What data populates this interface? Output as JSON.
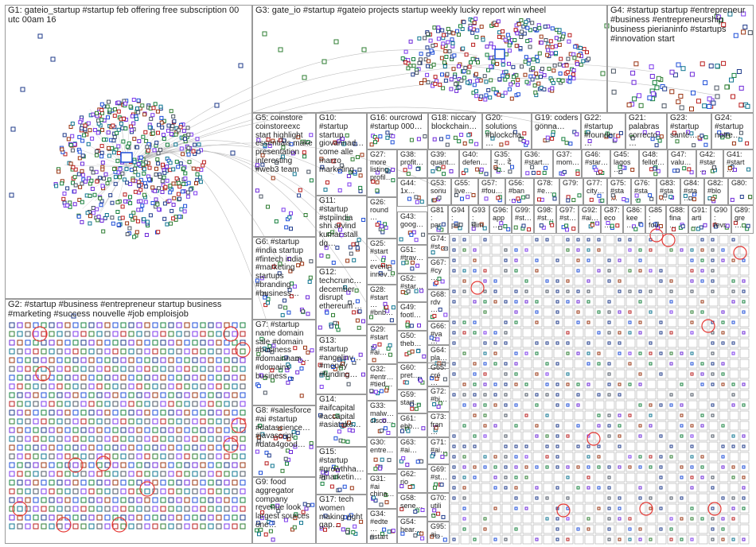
{
  "colors": {
    "background": "#ffffff",
    "group_border": "#9a9a9a",
    "label_text": "#222222",
    "edge": "#b8b8b8",
    "highlight_ring": "#e53935",
    "node_palette": [
      "#1e3a8a",
      "#2e7d32",
      "#6d28d9",
      "#0e7490",
      "#9a3412",
      "#4b5563",
      "#1d4ed8",
      "#7c3aed",
      "#15803d",
      "#b91c1c"
    ]
  },
  "groups": [
    {
      "id": "G1",
      "label": "G1: gateio_startup #startup feb offering free subscription 00 utc 00am 16",
      "layout": "cluster"
    },
    {
      "id": "G2",
      "label": "G2: #startup #business #entrepreneur startup business #marketing #success nouvelle #job emploisjob",
      "layout": "grid"
    },
    {
      "id": "G3",
      "label": "G3: gate_io #startup #gateio projects startup weekly lucky report win wheel",
      "layout": "cluster"
    },
    {
      "id": "G4",
      "label": "G4: #startup startup #entrepreneur #business #entrepreneurship business pierianinfo #startups #innovation start",
      "layout": "sparse"
    },
    {
      "id": "G5",
      "label": "G5: coinstore coinstoreexc start highlight essentials make presentation interesting #web3 team",
      "layout": "cluster"
    },
    {
      "id": "G6",
      "label": "G6: #startup #india startup #fintech india #marketing startups #branding #business…",
      "layout": "sparse"
    },
    {
      "id": "G7",
      "label": "G7: #startup name domain sale #domain #business #domainnam… #domains business…",
      "layout": "sparse"
    },
    {
      "id": "G8",
      "label": "G8: #salesforce #ai #startup #datascience… #javascript #data4good…",
      "layout": "sparse"
    },
    {
      "id": "G9",
      "label": "G9: food aggregator company revenue look largest sources one…",
      "layout": "sparse"
    },
    {
      "id": "G10",
      "label": "G10: #startup startup giovannad… come alle marzo marketing…",
      "layout": "sparse"
    },
    {
      "id": "G11",
      "label": "G11: #startup #stpiindia shri arvind kumar stall dg…",
      "layout": "sparse"
    },
    {
      "id": "G12",
      "label": "G12: techcrunc… december disrupt ethereum'…",
      "layout": "sparse"
    },
    {
      "id": "G13",
      "label": "G13: #startup #angelinv… #money #funding…",
      "layout": "sparse"
    },
    {
      "id": "G14",
      "label": "G14: #aifcapital #accapital #asiatoke…",
      "layout": "sparse"
    },
    {
      "id": "G15",
      "label": "G15: #startup #growthha… #marketin…",
      "layout": "sparse"
    },
    {
      "id": "G16",
      "label": "G16: ourcrowd #startup 000…",
      "layout": "sparse"
    },
    {
      "id": "G17",
      "label": "G17: tech women making right gap…",
      "layout": "sparse"
    },
    {
      "id": "G18",
      "label": "G18: niccary blockchain…",
      "layout": "sparse"
    },
    {
      "id": "G19",
      "label": "G19: coders gonna…",
      "layout": "sparse"
    },
    {
      "id": "G20",
      "label": "G20: solutions #blockcha…",
      "layout": "sparse"
    },
    {
      "id": "G21",
      "label": "G21: palabras correcto…",
      "layout": "sparse"
    },
    {
      "id": "G22",
      "label": "G22: #startup #founder…",
      "layout": "sparse"
    },
    {
      "id": "G23",
      "label": "G23: #startup santé…",
      "layout": "sparse"
    },
    {
      "id": "G24",
      "label": "G24: #startup notre…",
      "layout": "sparse"
    },
    {
      "id": "G25",
      "label": "G25: #start… event innov…",
      "layout": "sparse"
    },
    {
      "id": "G26",
      "label": "G26: round…",
      "layout": "sparse"
    },
    {
      "id": "G27",
      "label": "G27: more listing profil…",
      "layout": "sparse"
    },
    {
      "id": "G28",
      "label": "G28: #start… #bnb…",
      "layout": "sparse"
    },
    {
      "id": "G29",
      "label": "G29: #start… #ai…",
      "layout": "sparse"
    },
    {
      "id": "G30",
      "label": "G30: entre…",
      "layout": "sparse"
    },
    {
      "id": "G31",
      "label": "G31: #ai china…",
      "layout": "sparse"
    },
    {
      "id": "G32",
      "label": "G32: #entr… #tied…",
      "layout": "sparse"
    },
    {
      "id": "G33",
      "label": "G33: malw… cisco…",
      "layout": "sparse"
    },
    {
      "id": "G34",
      "label": "G34: #edte… #start…",
      "layout": "sparse"
    },
    {
      "id": "G35",
      "label": "G35: न… दे न…",
      "layout": "sparse"
    },
    {
      "id": "G36",
      "label": "G36: #start…",
      "layout": "sparse"
    },
    {
      "id": "G37",
      "label": "G37: mom…",
      "layout": "sparse"
    },
    {
      "id": "G38",
      "label": "G38: profit…",
      "layout": "sparse"
    },
    {
      "id": "G39",
      "label": "G39: quant…",
      "layout": "sparse"
    },
    {
      "id": "G40",
      "label": "G40: defen…",
      "layout": "sparse"
    },
    {
      "id": "G41",
      "label": "G41: #start…",
      "layout": "sparse"
    },
    {
      "id": "G42",
      "label": "G42: #star…",
      "layout": "sparse"
    },
    {
      "id": "G43",
      "label": "G43: goog…",
      "layout": "sparse"
    },
    {
      "id": "G44",
      "label": "G44: 1x…",
      "layout": "sparse"
    },
    {
      "id": "G45",
      "label": "G45: lagos…",
      "layout": "sparse"
    },
    {
      "id": "G46",
      "label": "G46: #star…",
      "layout": "sparse"
    },
    {
      "id": "G47",
      "label": "G47: valu…",
      "layout": "sparse"
    },
    {
      "id": "G48",
      "label": "G48: fellof…",
      "layout": "sparse"
    },
    {
      "id": "G49",
      "label": "G49: footl…",
      "layout": "sparse"
    },
    {
      "id": "G50",
      "label": "G50: theb…",
      "layout": "sparse"
    },
    {
      "id": "G51",
      "label": "G51: #trav…",
      "layout": "sparse"
    },
    {
      "id": "G52",
      "label": "G52: #star…",
      "layout": "sparse"
    },
    {
      "id": "G53",
      "label": "G53: sonu…",
      "layout": "sparse"
    },
    {
      "id": "G54",
      "label": "G54: hear…",
      "layout": "sparse"
    },
    {
      "id": "G55",
      "label": "G55: live…",
      "layout": "sparse"
    },
    {
      "id": "G56",
      "label": "G56: #ban…",
      "layout": "sparse"
    },
    {
      "id": "G57",
      "label": "G57: #fou…",
      "layout": "sparse"
    },
    {
      "id": "G58",
      "label": "G58: sene…",
      "layout": "sparse"
    },
    {
      "id": "G59",
      "label": "G59: start…",
      "layout": "sparse"
    },
    {
      "id": "G60",
      "label": "G60: pret…",
      "layout": "sparse"
    },
    {
      "id": "G61",
      "label": "G61: ebb…",
      "layout": "sparse"
    },
    {
      "id": "G62",
      "label": "G62: rio",
      "layout": "sparse"
    },
    {
      "id": "G63",
      "label": "G63: #ai…",
      "layout": "sparse"
    },
    {
      "id": "G64",
      "label": "G64: pla…",
      "layout": "sparse"
    },
    {
      "id": "G65",
      "label": "G65: cré…",
      "layout": "sparse"
    },
    {
      "id": "G66",
      "label": "G66: #va…",
      "layout": "sparse"
    },
    {
      "id": "G67",
      "label": "G67: #cy…",
      "layout": "sparse"
    },
    {
      "id": "G68",
      "label": "G68: rdv…",
      "layout": "sparse"
    },
    {
      "id": "G69",
      "label": "G69: #st…",
      "layout": "sparse"
    },
    {
      "id": "G70",
      "label": "G70: utili…",
      "layout": "sparse"
    },
    {
      "id": "G71",
      "label": "G71: #ai…",
      "layout": "sparse"
    },
    {
      "id": "G72",
      "label": "G72: #bi…",
      "layout": "sparse"
    },
    {
      "id": "G73",
      "label": "G73: fran…",
      "layout": "sparse"
    },
    {
      "id": "G74",
      "label": "G74: #st…",
      "layout": "sparse"
    },
    {
      "id": "G75",
      "label": "G75: #sta…",
      "layout": "sparse"
    },
    {
      "id": "G76",
      "label": "G76: #sta…",
      "layout": "sparse"
    },
    {
      "id": "G77",
      "label": "G77: city…",
      "layout": "sparse"
    },
    {
      "id": "G78",
      "label": "G78: #e…",
      "layout": "sparse"
    },
    {
      "id": "G79",
      "label": "G79:",
      "layout": "sparse"
    },
    {
      "id": "G80",
      "label": "G80:",
      "layout": "sparse"
    },
    {
      "id": "G81",
      "label": "G81: par…",
      "layout": "sparse"
    },
    {
      "id": "G82",
      "label": "G82: #blo…",
      "layout": "sparse"
    },
    {
      "id": "G83",
      "label": "G83: #sta…",
      "layout": "sparse"
    },
    {
      "id": "G84",
      "label": "G84: #sta…",
      "layout": "sparse"
    },
    {
      "id": "G85",
      "label": "G85: fou…",
      "layout": "sparse"
    },
    {
      "id": "G86",
      "label": "G86: kee…",
      "layout": "sparse"
    },
    {
      "id": "G87",
      "label": "G87: eco…",
      "layout": "sparse"
    },
    {
      "id": "G88",
      "label": "G88: fina…",
      "layout": "sparse"
    },
    {
      "id": "G89",
      "label": "G89: gre…",
      "layout": "sparse"
    },
    {
      "id": "G90",
      "label": "G90: fevr…",
      "layout": "sparse"
    },
    {
      "id": "G91",
      "label": "G91: arti…",
      "layout": "sparse"
    },
    {
      "id": "G92",
      "label": "G92: #ai…",
      "layout": "sparse"
    },
    {
      "id": "G93",
      "label": "G93: dim…",
      "layout": "sparse"
    },
    {
      "id": "G94",
      "label": "G94: pill…",
      "layout": "sparse"
    },
    {
      "id": "G95",
      "label": "G95: ai…",
      "layout": "sparse"
    },
    {
      "id": "G96",
      "label": "G96: app…",
      "layout": "sparse"
    },
    {
      "id": "G97",
      "label": "G97: #st…",
      "layout": "sparse"
    },
    {
      "id": "G98",
      "label": "G98: #st…",
      "layout": "sparse"
    },
    {
      "id": "G99",
      "label": "G99: #st…",
      "layout": "sparse"
    }
  ]
}
